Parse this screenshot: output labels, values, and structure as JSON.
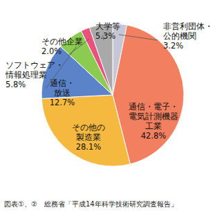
{
  "chart_data": {
    "type": "pie",
    "categories": [
      "非営利団体・\n公的機関",
      "通信・電子・\n電気計測機器\n工業",
      "その他の\n製造業",
      "通信・\n放送",
      "ソフトウェア・\n情報処理業",
      "その他企業",
      "大学等"
    ],
    "values": [
      3.2,
      42.8,
      28.1,
      12.7,
      5.8,
      2.0,
      5.3
    ],
    "value_labels": [
      "3.2%",
      "42.8%",
      "28.1%",
      "12.7%",
      "5.8%",
      "2.0%",
      "5.3%"
    ],
    "colors": [
      "#c6c6d6",
      "#f27f5f",
      "#f6b93f",
      "#5b83c9",
      "#8ccb52",
      "#e9527c",
      "#a9a9a9"
    ],
    "data_labels": true,
    "caption": "図表①、②　総務省「平成14年科学技術研究調査報告」"
  }
}
